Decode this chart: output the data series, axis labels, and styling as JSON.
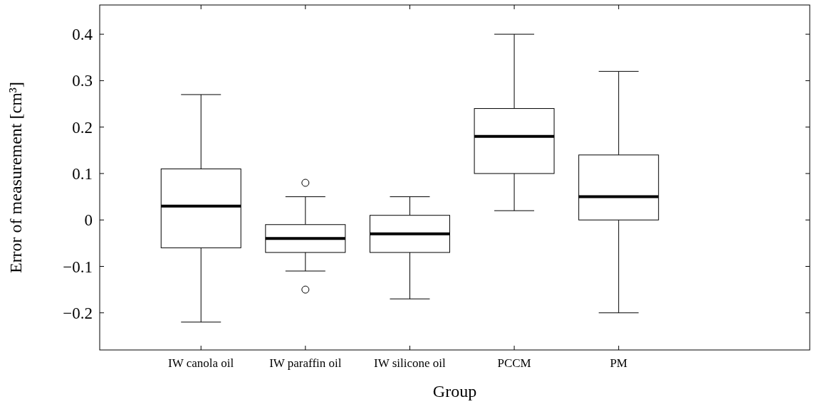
{
  "chart_data": {
    "type": "box",
    "xlabel": "Group",
    "ylabel": "Error of measurement [cm³]",
    "categories": [
      "IW canola oil",
      "IW paraffin oil",
      "IW silicone oil",
      "PCCM",
      "PM"
    ],
    "boxes": [
      {
        "low": -0.22,
        "q1": -0.06,
        "median": 0.03,
        "q3": 0.11,
        "high": 0.27
      },
      {
        "low": -0.11,
        "q1": -0.07,
        "median": -0.04,
        "q3": -0.01,
        "high": 0.05,
        "outliers": [
          0.08,
          -0.15
        ]
      },
      {
        "low": -0.17,
        "q1": -0.07,
        "median": -0.03,
        "q3": 0.01,
        "high": 0.05
      },
      {
        "low": 0.02,
        "q1": 0.1,
        "median": 0.18,
        "q3": 0.24,
        "high": 0.4
      },
      {
        "low": -0.2,
        "q1": 0,
        "median": 0.05,
        "q3": 0.14,
        "high": 0.32
      }
    ],
    "color": "#000000",
    "ylim": [
      -0.28,
      0.463
    ],
    "yticks": [
      {
        "value": -0.2,
        "label": "−0.2"
      },
      {
        "value": -0.1,
        "label": "−0.1"
      },
      0,
      0.1,
      0.2,
      0.3,
      0.4
    ],
    "grid": false
  }
}
